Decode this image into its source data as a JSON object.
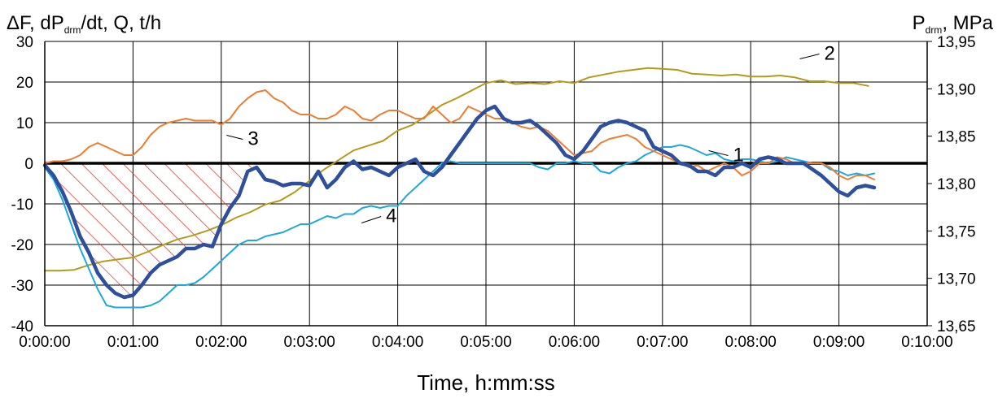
{
  "chart_data": {
    "type": "line",
    "ylabel_left": "ΔF, dP",
    "ylabel_left_sub": "drm",
    "ylabel_left_tail": "/dt, Q, t/h",
    "ylabel_right": "P",
    "ylabel_right_sub": "drm",
    "ylabel_right_tail": ", MPa",
    "xlabel": "Time, h:mm:ss",
    "x_range": [
      0,
      600
    ],
    "y_left_range": [
      -40,
      30
    ],
    "y_right_range": [
      13.65,
      13.95
    ],
    "x_ticks": [
      {
        "v": 0,
        "label": "0:00:00"
      },
      {
        "v": 60,
        "label": "0:01:00"
      },
      {
        "v": 120,
        "label": "0:02:00"
      },
      {
        "v": 180,
        "label": "0:03:00"
      },
      {
        "v": 240,
        "label": "0:04:00"
      },
      {
        "v": 300,
        "label": "0:05:00"
      },
      {
        "v": 360,
        "label": "0:06:00"
      },
      {
        "v": 420,
        "label": "0:07:00"
      },
      {
        "v": 480,
        "label": "0:08:00"
      },
      {
        "v": 540,
        "label": "0:09:00"
      },
      {
        "v": 600,
        "label": "0:10:00"
      }
    ],
    "y_left_ticks": [
      {
        "v": 30,
        "label": "30"
      },
      {
        "v": 20,
        "label": "20"
      },
      {
        "v": 10,
        "label": "10"
      },
      {
        "v": 0,
        "label": "0"
      },
      {
        "v": -10,
        "label": "-10"
      },
      {
        "v": -20,
        "label": "-20"
      },
      {
        "v": -30,
        "label": "-30"
      },
      {
        "v": -40,
        "label": "-40"
      }
    ],
    "y_right_ticks": [
      {
        "v": 13.95,
        "label": "13,95"
      },
      {
        "v": 13.9,
        "label": "13,90"
      },
      {
        "v": 13.85,
        "label": "13,85"
      },
      {
        "v": 13.8,
        "label": "13,80"
      },
      {
        "v": 13.75,
        "label": "13,75"
      },
      {
        "v": 13.7,
        "label": "13,70"
      },
      {
        "v": 13.65,
        "label": "13,65"
      }
    ],
    "grid": true,
    "series": [
      {
        "label": "1",
        "axis": "left",
        "color": "#1ea8dc",
        "width": 2,
        "x": [
          0,
          6,
          12,
          18,
          24,
          30,
          36,
          42,
          48,
          54,
          60,
          66,
          72,
          78,
          84,
          90,
          96,
          102,
          108,
          114,
          120,
          126,
          132,
          138,
          144,
          150,
          156,
          162,
          168,
          174,
          180,
          186,
          192,
          198,
          204,
          210,
          216,
          222,
          228,
          234,
          240,
          246,
          252,
          258,
          264,
          270,
          276,
          282,
          288,
          294,
          300,
          306,
          312,
          318,
          324,
          330,
          336,
          342,
          348,
          354,
          360,
          366,
          372,
          378,
          384,
          390,
          396,
          402,
          408,
          414,
          420,
          426,
          432,
          438,
          444,
          450,
          456,
          462,
          468,
          474,
          480,
          486,
          492,
          498,
          504,
          510,
          516,
          522,
          528,
          534,
          540,
          546,
          552,
          558,
          564
        ],
        "y": [
          -1,
          -4,
          -9,
          -15,
          -21,
          -26,
          -31,
          -35,
          -35.5,
          -35.5,
          -35.5,
          -35.5,
          -35,
          -34,
          -32,
          -30,
          -30,
          -29.5,
          -28,
          -26,
          -24,
          -22,
          -20,
          -19,
          -19,
          -18,
          -17.5,
          -17,
          -16,
          -15,
          -15,
          -14,
          -13,
          -13.5,
          -12.5,
          -12.5,
          -11,
          -10.5,
          -11,
          -10.5,
          -10.5,
          -8,
          -6,
          -4,
          -2,
          0,
          0.5,
          0,
          0,
          0,
          0,
          0,
          0,
          0,
          0,
          0,
          -1,
          -1.5,
          0,
          0,
          0.5,
          0,
          0,
          -2,
          -2.5,
          -1,
          0,
          0.5,
          2,
          3,
          4,
          4,
          4.5,
          4,
          3,
          2,
          2.5,
          1,
          0.5,
          1,
          1,
          0.5,
          0,
          0.5,
          1.5,
          1,
          0.5,
          0,
          0,
          -1.5,
          -2,
          -3,
          -2.5,
          -3,
          -2.5
        ]
      },
      {
        "label": "2",
        "axis": "right",
        "color": "#b59a1a",
        "width": 2,
        "x": [
          0,
          10,
          20,
          30,
          40,
          50,
          60,
          70,
          80,
          90,
          100,
          110,
          120,
          130,
          140,
          150,
          160,
          170,
          180,
          190,
          200,
          210,
          220,
          230,
          240,
          250,
          260,
          270,
          280,
          290,
          300,
          310,
          320,
          330,
          340,
          350,
          360,
          370,
          380,
          390,
          400,
          410,
          420,
          430,
          440,
          450,
          460,
          470,
          480,
          490,
          500,
          510,
          520,
          530,
          540,
          550,
          560
        ],
        "y": [
          13.708,
          13.708,
          13.709,
          13.714,
          13.718,
          13.72,
          13.722,
          13.728,
          13.735,
          13.741,
          13.745,
          13.75,
          13.756,
          13.764,
          13.77,
          13.778,
          13.782,
          13.791,
          13.803,
          13.815,
          13.825,
          13.835,
          13.84,
          13.845,
          13.856,
          13.862,
          13.872,
          13.883,
          13.89,
          13.898,
          13.906,
          13.909,
          13.905,
          13.906,
          13.905,
          13.908,
          13.906,
          13.912,
          13.915,
          13.918,
          13.92,
          13.922,
          13.921,
          13.92,
          13.916,
          13.915,
          13.914,
          13.915,
          13.913,
          13.913,
          13.914,
          13.912,
          13.908,
          13.908,
          13.906,
          13.906,
          13.903
        ]
      },
      {
        "label": "3",
        "axis": "left",
        "color": "#ed7d31",
        "width": 2,
        "x": [
          0,
          6,
          12,
          18,
          24,
          30,
          36,
          42,
          48,
          54,
          60,
          66,
          72,
          78,
          84,
          90,
          96,
          102,
          108,
          114,
          120,
          126,
          132,
          138,
          144,
          150,
          156,
          162,
          168,
          174,
          180,
          186,
          192,
          198,
          204,
          210,
          216,
          222,
          228,
          234,
          240,
          246,
          252,
          258,
          264,
          270,
          276,
          282,
          288,
          294,
          300,
          306,
          312,
          318,
          324,
          330,
          336,
          342,
          348,
          354,
          360,
          366,
          372,
          378,
          384,
          390,
          396,
          402,
          408,
          414,
          420,
          426,
          432,
          438,
          444,
          450,
          456,
          462,
          468,
          474,
          480,
          486,
          492,
          498,
          504,
          510,
          516,
          522,
          528,
          534,
          540,
          546,
          552,
          558,
          564
        ],
        "y": [
          0,
          0.5,
          0.5,
          1,
          2,
          4,
          5,
          4,
          3,
          2,
          2,
          4,
          7,
          9,
          10,
          10.5,
          11,
          10.5,
          10.5,
          10.5,
          9.5,
          11,
          14,
          16,
          17.5,
          18,
          16,
          15,
          13,
          12,
          12,
          11,
          11,
          12,
          14,
          13,
          11,
          10.5,
          12,
          13,
          13,
          12,
          11,
          11,
          14,
          12,
          10,
          11,
          14,
          13,
          12,
          11,
          11,
          10,
          9,
          8.5,
          9,
          8,
          6,
          4,
          2,
          2.5,
          3,
          5,
          6,
          6.5,
          7,
          6,
          4,
          3,
          2,
          1,
          0,
          -1,
          -0.5,
          -2,
          -1,
          0,
          -1,
          -3,
          -2,
          0,
          0,
          1.5,
          1,
          0,
          0,
          0,
          0,
          -1,
          -3,
          -4,
          -3,
          -3,
          -4
        ]
      },
      {
        "label": "4",
        "axis": "left",
        "color": "#2e4f9b",
        "width": 4.5,
        "x": [
          0,
          6,
          12,
          18,
          24,
          30,
          36,
          42,
          48,
          54,
          60,
          66,
          72,
          78,
          84,
          90,
          96,
          102,
          108,
          114,
          120,
          126,
          132,
          138,
          144,
          150,
          156,
          162,
          168,
          174,
          180,
          186,
          192,
          198,
          204,
          210,
          216,
          222,
          228,
          234,
          240,
          246,
          252,
          258,
          264,
          270,
          276,
          282,
          288,
          294,
          300,
          306,
          312,
          318,
          324,
          330,
          336,
          342,
          348,
          354,
          360,
          366,
          372,
          378,
          384,
          390,
          396,
          402,
          408,
          414,
          420,
          426,
          432,
          438,
          444,
          450,
          456,
          462,
          468,
          474,
          480,
          486,
          492,
          498,
          504,
          510,
          516,
          522,
          528,
          534,
          540,
          546,
          552,
          558,
          564
        ],
        "y": [
          -0.5,
          -3,
          -7,
          -12,
          -18,
          -22,
          -27,
          -30,
          -32,
          -33,
          -32.5,
          -30,
          -27,
          -25,
          -24,
          -23,
          -21,
          -21,
          -20,
          -20.5,
          -15,
          -11,
          -8,
          -2,
          -1,
          -4,
          -4.5,
          -5.5,
          -5,
          -5,
          -5.5,
          -2,
          -6,
          -4,
          -1,
          0.5,
          -1.5,
          -1,
          -2,
          -3,
          -1,
          0,
          1,
          -2,
          -3,
          -1,
          2,
          5,
          8,
          11,
          13,
          14,
          11,
          10,
          10,
          10.5,
          9,
          7,
          5,
          2,
          1,
          3,
          6,
          9,
          10,
          10.5,
          10,
          9,
          8,
          4,
          3,
          2,
          0,
          -0.5,
          -2,
          -2,
          -3,
          -1,
          -1,
          0,
          -1,
          1,
          1.5,
          1,
          0,
          0,
          0,
          -1.5,
          -3,
          -5,
          -7,
          -8,
          -6,
          -5.5,
          -6
        ]
      }
    ],
    "series_labels": [
      {
        "text": "1",
        "x": 468,
        "y": 0.5
      },
      {
        "text": "2",
        "x": 530,
        "y": 25.5
      },
      {
        "text": "3",
        "x": 138,
        "y": 4.5
      },
      {
        "text": "4",
        "x": 232,
        "y": -14.5
      }
    ],
    "hatched_region_color": "#d9372b"
  }
}
